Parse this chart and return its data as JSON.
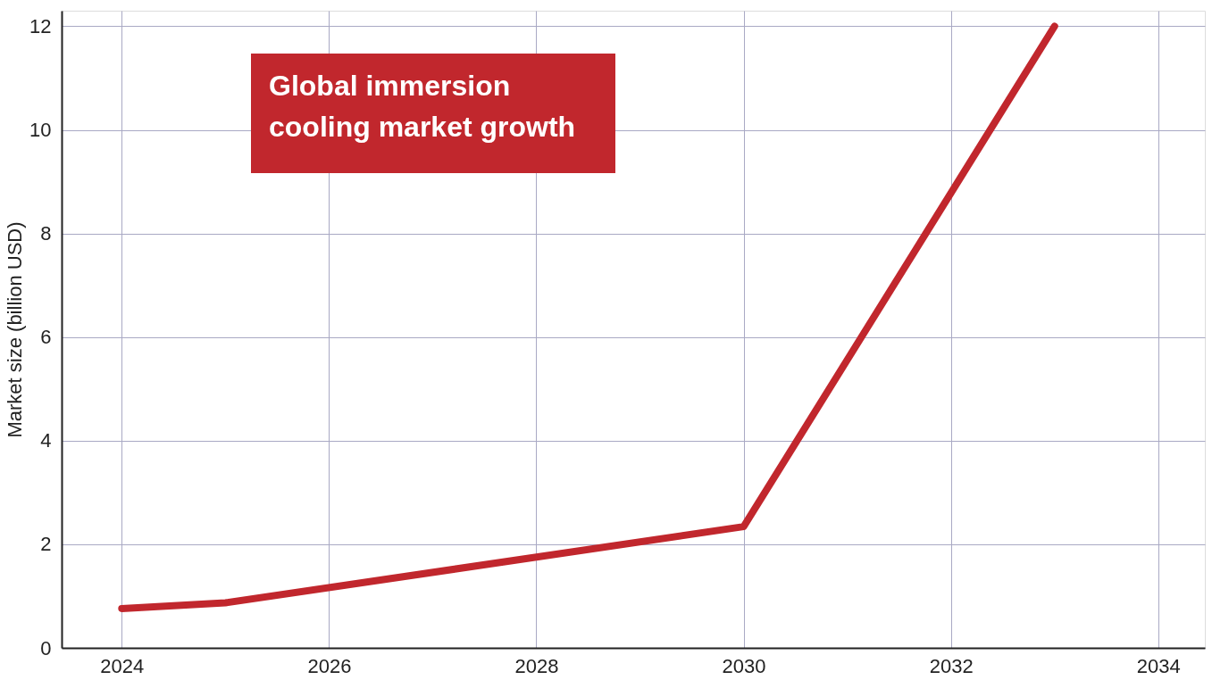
{
  "chart_data": {
    "type": "line",
    "ylabel": "Market size (billion USD)",
    "x": [
      2024,
      2025,
      2030,
      2033
    ],
    "series": [
      {
        "color": "#c1272d",
        "values": [
          0.76,
          0.87,
          2.34,
          12.0
        ]
      }
    ],
    "xlim": [
      2023.42,
      2034.45
    ],
    "xticks": [
      2024,
      2026,
      2028,
      2030,
      2032,
      2034
    ],
    "ylim": [
      0,
      12.3
    ],
    "yticks": [
      0,
      2,
      4,
      6,
      8,
      10,
      12
    ],
    "grid": true,
    "line_style": "solid",
    "annotations": [
      "Global immersion cooling market growth"
    ]
  }
}
